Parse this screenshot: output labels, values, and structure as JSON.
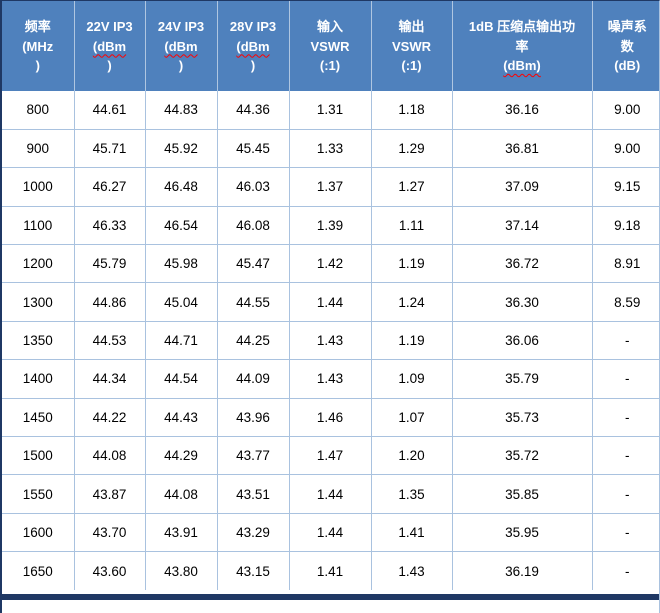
{
  "table": {
    "columns": [
      {
        "key": "frequency",
        "lines": [
          "频率",
          "(MHz",
          ")"
        ],
        "squiggle_line": -1
      },
      {
        "key": "22v-ip3",
        "lines": [
          "22V IP3",
          "(dBm",
          ")"
        ],
        "squiggle_line": 1
      },
      {
        "key": "24v-ip3",
        "lines": [
          "24V IP3",
          "(dBm",
          ")"
        ],
        "squiggle_line": 1
      },
      {
        "key": "28v-ip3",
        "lines": [
          "28V IP3",
          "(dBm",
          ")"
        ],
        "squiggle_line": 1
      },
      {
        "key": "input-vswr",
        "lines": [
          "输入",
          "VSWR",
          "(:1)"
        ],
        "squiggle_line": -1
      },
      {
        "key": "output-vswr",
        "lines": [
          "输出",
          "VSWR",
          "(:1)"
        ],
        "squiggle_line": -1
      },
      {
        "key": "p1db-output-power",
        "lines": [
          "1dB 压缩点输出功",
          "率",
          "(dBm)"
        ],
        "squiggle_line": 2
      },
      {
        "key": "noise-figure",
        "lines": [
          "噪声系",
          "数",
          "(dB)"
        ],
        "squiggle_line": -1
      }
    ],
    "rows": [
      [
        "800",
        "44.61",
        "44.83",
        "44.36",
        "1.31",
        "1.18",
        "36.16",
        "9.00"
      ],
      [
        "900",
        "45.71",
        "45.92",
        "45.45",
        "1.33",
        "1.29",
        "36.81",
        "9.00"
      ],
      [
        "1000",
        "46.27",
        "46.48",
        "46.03",
        "1.37",
        "1.27",
        "37.09",
        "9.15"
      ],
      [
        "1100",
        "46.33",
        "46.54",
        "46.08",
        "1.39",
        "1.11",
        "37.14",
        "9.18"
      ],
      [
        "1200",
        "45.79",
        "45.98",
        "45.47",
        "1.42",
        "1.19",
        "36.72",
        "8.91"
      ],
      [
        "1300",
        "44.86",
        "45.04",
        "44.55",
        "1.44",
        "1.24",
        "36.30",
        "8.59"
      ],
      [
        "1350",
        "44.53",
        "44.71",
        "44.25",
        "1.43",
        "1.19",
        "36.06",
        "-"
      ],
      [
        "1400",
        "44.34",
        "44.54",
        "44.09",
        "1.43",
        "1.09",
        "35.79",
        "-"
      ],
      [
        "1450",
        "44.22",
        "44.43",
        "43.96",
        "1.46",
        "1.07",
        "35.73",
        "-"
      ],
      [
        "1500",
        "44.08",
        "44.29",
        "43.77",
        "1.47",
        "1.20",
        "35.72",
        "-"
      ],
      [
        "1550",
        "43.87",
        "44.08",
        "43.51",
        "1.44",
        "1.35",
        "35.85",
        "-"
      ],
      [
        "1600",
        "43.70",
        "43.91",
        "43.29",
        "1.44",
        "1.41",
        "35.95",
        "-"
      ],
      [
        "1650",
        "43.60",
        "43.80",
        "43.15",
        "1.41",
        "1.43",
        "36.19",
        "-"
      ]
    ]
  },
  "colors": {
    "header_background": "#4F81BD",
    "header_text": "#FFFFFF",
    "grid_lines": "#A9C2DF",
    "outer_dark_border": "#1F3864",
    "spellcheck_underline": "#FF0000",
    "body_text": "#000000"
  }
}
